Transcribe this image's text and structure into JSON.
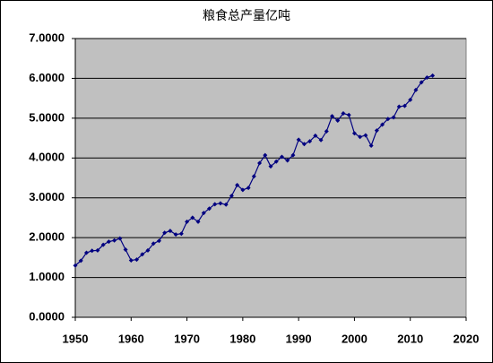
{
  "chart_data": {
    "type": "line",
    "title": "粮食总产量亿吨",
    "x": [
      1950,
      1951,
      1952,
      1953,
      1954,
      1955,
      1956,
      1957,
      1958,
      1959,
      1960,
      1961,
      1962,
      1963,
      1964,
      1965,
      1966,
      1967,
      1968,
      1969,
      1970,
      1971,
      1972,
      1973,
      1974,
      1975,
      1976,
      1977,
      1978,
      1979,
      1980,
      1981,
      1982,
      1983,
      1984,
      1985,
      1986,
      1987,
      1988,
      1989,
      1990,
      1991,
      1992,
      1993,
      1994,
      1995,
      1996,
      1997,
      1998,
      1999,
      2000,
      2001,
      2002,
      2003,
      2004,
      2005,
      2006,
      2007,
      2008,
      2009,
      2010,
      2011,
      2012,
      2013,
      2014
    ],
    "series": [
      {
        "color": "#000080",
        "values": [
          1.3,
          1.42,
          1.62,
          1.67,
          1.68,
          1.82,
          1.9,
          1.93,
          1.98,
          1.7,
          1.43,
          1.45,
          1.58,
          1.68,
          1.85,
          1.92,
          2.12,
          2.17,
          2.08,
          2.1,
          2.4,
          2.5,
          2.4,
          2.62,
          2.73,
          2.84,
          2.86,
          2.83,
          3.05,
          3.32,
          3.2,
          3.25,
          3.54,
          3.87,
          4.07,
          3.79,
          3.91,
          4.03,
          3.94,
          4.07,
          4.46,
          4.35,
          4.42,
          4.56,
          4.45,
          4.67,
          5.05,
          4.94,
          5.12,
          5.08,
          4.62,
          4.53,
          4.57,
          4.31,
          4.69,
          4.84,
          4.98,
          5.02,
          5.29,
          5.31,
          5.46,
          5.71,
          5.9,
          6.02,
          6.07
        ]
      }
    ],
    "xlim": [
      1950,
      2020
    ],
    "xticks": [
      1950,
      1960,
      1970,
      1980,
      1990,
      2000,
      2010,
      2020
    ],
    "ylim": [
      0,
      7
    ],
    "yticks": [
      {
        "value": 0,
        "label": "0.0000"
      },
      {
        "value": 1,
        "label": "1.0000"
      },
      {
        "value": 2,
        "label": "2.0000"
      },
      {
        "value": 3,
        "label": "3.0000"
      },
      {
        "value": 4,
        "label": "4.0000"
      },
      {
        "value": 5,
        "label": "5.0000"
      },
      {
        "value": 6,
        "label": "6.0000"
      },
      {
        "value": 7,
        "label": "7.0000"
      }
    ],
    "grid": true,
    "plot_background": "#c0c0c0"
  }
}
